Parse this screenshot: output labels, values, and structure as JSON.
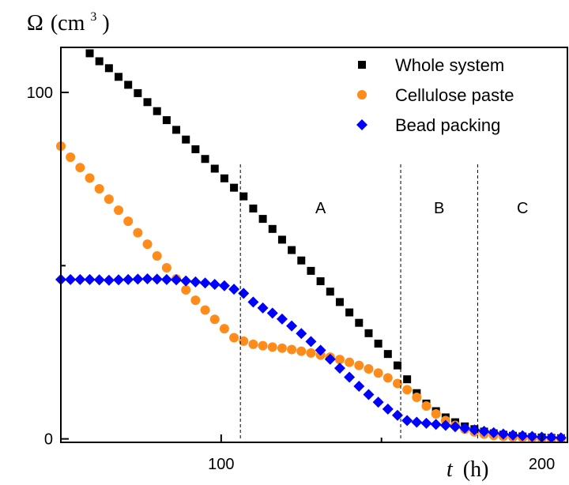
{
  "chart_data": {
    "type": "scatter",
    "ylabel": "Ω (cm³)",
    "xlabel": "t (h)",
    "xlabel_parts": {
      "variable": "t",
      "unit": "(h)"
    },
    "ylabel_parts": {
      "symbol": "Ω",
      "unit_base": "(cm",
      "unit_exp": "3",
      "unit_close": ")"
    },
    "xlim": [
      50,
      208
    ],
    "ylim": [
      -1,
      113
    ],
    "x_ticks": [
      100,
      200
    ],
    "x_minor_ticks": [
      50,
      150
    ],
    "y_ticks": [
      0,
      100
    ],
    "y_minor_ticks": [
      50
    ],
    "grid": false,
    "legend_position": "top-right",
    "regions": [
      {
        "label": "A",
        "x_start": 106,
        "x_end": 156
      },
      {
        "label": "B",
        "x_start": 156,
        "x_end": 180
      },
      {
        "label": "C",
        "x_start": 180,
        "x_end": 208
      }
    ],
    "region_boundaries": [
      106,
      156,
      180
    ],
    "series": [
      {
        "name": "Whole system",
        "marker": "square",
        "color": "#000000",
        "x": [
          59,
          62,
          65,
          68,
          71,
          74,
          77,
          80,
          83,
          86,
          89,
          92,
          95,
          98,
          101,
          104,
          107,
          110,
          113,
          116,
          119,
          122,
          125,
          128,
          131,
          134,
          137,
          140,
          143,
          146,
          149,
          152,
          155,
          158,
          161,
          164,
          167,
          170,
          173,
          176,
          179,
          182,
          185,
          188,
          191,
          194,
          197,
          200,
          203,
          206
        ],
        "y": [
          111.3,
          109,
          107,
          104.5,
          102.2,
          99.8,
          97.2,
          94.6,
          92,
          89.2,
          86.4,
          83.6,
          80.8,
          78,
          75.2,
          72.5,
          70,
          66.5,
          63.5,
          60.6,
          57.5,
          54.5,
          51.5,
          48.5,
          45.5,
          42.5,
          39.5,
          36.5,
          33.5,
          30.5,
          27.5,
          24.5,
          21.2,
          17.2,
          13.2,
          10.2,
          8.0,
          6.2,
          4.8,
          3.6,
          2.8,
          2.1,
          1.6,
          1.2,
          0.9,
          0.7,
          0.5,
          0.4,
          0.3,
          0.2
        ]
      },
      {
        "name": "Cellulose paste",
        "marker": "circle",
        "color": "#ff8c1a",
        "x": [
          50,
          53,
          56,
          59,
          62,
          65,
          68,
          71,
          74,
          77,
          80,
          83,
          86,
          89,
          92,
          95,
          98,
          101,
          104,
          107,
          110,
          113,
          116,
          119,
          122,
          125,
          128,
          131,
          134,
          137,
          140,
          143,
          146,
          149,
          152,
          155,
          158,
          161,
          164,
          167,
          170,
          173,
          176,
          179,
          182,
          185,
          188,
          191,
          194,
          197,
          200,
          203,
          206
        ],
        "y": [
          84.5,
          81.3,
          78.3,
          75.3,
          72.2,
          69.2,
          66,
          62.8,
          59.5,
          56.2,
          52.8,
          49.4,
          46.2,
          43.0,
          40.0,
          37.2,
          34.5,
          31.8,
          29.2,
          28.2,
          27.3,
          26.9,
          26.5,
          26.2,
          25.8,
          25.3,
          24.8,
          24.2,
          23.6,
          22.9,
          22.1,
          21.2,
          20.2,
          19.0,
          17.6,
          16.0,
          14.2,
          12.0,
          9.5,
          7.2,
          5.3,
          3.9,
          2.8,
          2.0,
          1.4,
          1.0,
          0.7,
          0.5,
          0.4,
          0.3,
          0.2,
          0.2,
          0.1
        ]
      },
      {
        "name": "Bead packing",
        "marker": "diamond",
        "color": "#0000ff",
        "x": [
          50,
          53,
          56,
          59,
          62,
          65,
          68,
          71,
          74,
          77,
          80,
          83,
          86,
          89,
          92,
          95,
          98,
          101,
          104,
          107,
          110,
          113,
          116,
          119,
          122,
          125,
          128,
          131,
          134,
          137,
          140,
          143,
          146,
          149,
          152,
          155,
          158,
          161,
          164,
          167,
          170,
          173,
          176,
          179,
          182,
          185,
          188,
          191,
          194,
          197,
          200,
          203,
          206
        ],
        "y": [
          46.0,
          46.0,
          46.0,
          46.0,
          45.9,
          45.8,
          45.9,
          46.0,
          46.1,
          46.2,
          46.1,
          46.0,
          45.9,
          45.6,
          45.3,
          45.0,
          44.6,
          44.2,
          43.2,
          42.0,
          39.5,
          37.8,
          36.3,
          34.6,
          32.6,
          30.4,
          28.1,
          25.6,
          23.0,
          20.4,
          17.8,
          15.2,
          12.8,
          10.6,
          8.6,
          6.8,
          5.3,
          4.8,
          4.5,
          4.2,
          3.9,
          3.5,
          3.1,
          2.6,
          2.2,
          1.8,
          1.4,
          1.1,
          0.9,
          0.7,
          0.5,
          0.4,
          0.3
        ]
      }
    ]
  }
}
